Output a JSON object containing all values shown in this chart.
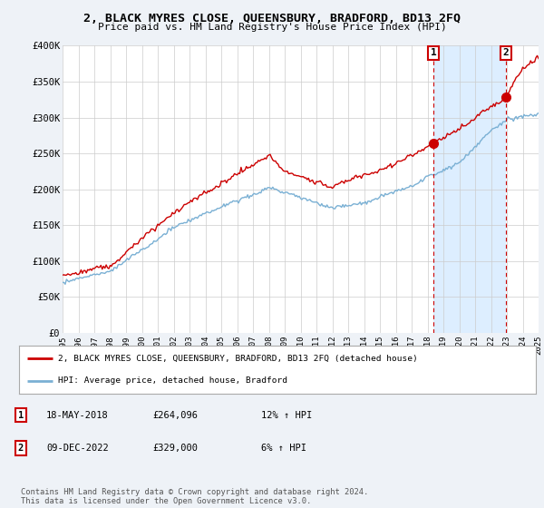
{
  "title": "2, BLACK MYRES CLOSE, QUEENSBURY, BRADFORD, BD13 2FQ",
  "subtitle": "Price paid vs. HM Land Registry's House Price Index (HPI)",
  "ylim": [
    0,
    400000
  ],
  "yticks": [
    0,
    50000,
    100000,
    150000,
    200000,
    250000,
    300000,
    350000,
    400000
  ],
  "ytick_labels": [
    "£0",
    "£50K",
    "£100K",
    "£150K",
    "£200K",
    "£250K",
    "£300K",
    "£350K",
    "£400K"
  ],
  "property_color": "#cc0000",
  "hpi_color": "#7ab0d4",
  "shade_color": "#ddeeff",
  "marker_vline_color": "#cc0000",
  "sale1_year": 2018.38,
  "sale1_price": 264096,
  "sale1_label": "1",
  "sale1_date": "18-MAY-2018",
  "sale1_price_str": "£264,096",
  "sale1_hpi_str": "12% ↑ HPI",
  "sale2_year": 2022.94,
  "sale2_price": 329000,
  "sale2_label": "2",
  "sale2_date": "09-DEC-2022",
  "sale2_price_str": "£329,000",
  "sale2_hpi_str": "6% ↑ HPI",
  "legend_line1": "2, BLACK MYRES CLOSE, QUEENSBURY, BRADFORD, BD13 2FQ (detached house)",
  "legend_line2": "HPI: Average price, detached house, Bradford",
  "footnote": "Contains HM Land Registry data © Crown copyright and database right 2024.\nThis data is licensed under the Open Government Licence v3.0.",
  "background_color": "#eef2f7",
  "plot_bg_color": "#ffffff"
}
